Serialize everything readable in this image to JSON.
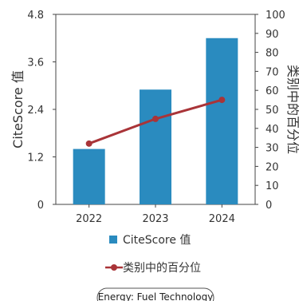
{
  "chart_data": {
    "type": "bar",
    "categories": [
      "2022",
      "2023",
      "2024"
    ],
    "series": [
      {
        "name": "CiteScore 值",
        "type": "bar",
        "axis": "left",
        "color": "#2a8bbf",
        "values": [
          1.4,
          2.9,
          4.2
        ]
      },
      {
        "name": "类别中的百分位",
        "type": "line",
        "axis": "right",
        "color": "#a93438",
        "values": [
          32,
          45,
          55
        ]
      }
    ],
    "ylabel": "CiteScore 值",
    "y2label": "类别中的百分位",
    "ylim": [
      0,
      4.8
    ],
    "yticks": [
      "0",
      "1.2",
      "2.4",
      "3.6",
      "4.8"
    ],
    "y2lim": [
      0,
      100
    ],
    "y2ticks": [
      "0",
      "10",
      "20",
      "30",
      "40",
      "50",
      "60",
      "70",
      "80",
      "90",
      "100"
    ],
    "grid": false,
    "legend_placement": "bottom"
  },
  "badge": {
    "label": "Energy: Fuel Technology"
  }
}
